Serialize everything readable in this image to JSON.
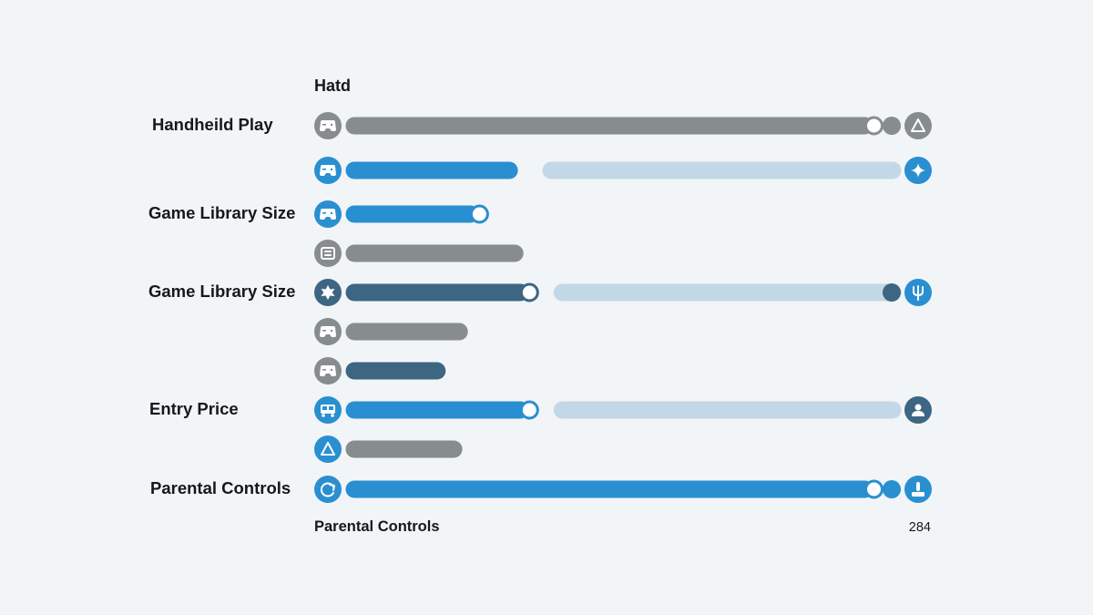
{
  "chart_data": {
    "type": "bar",
    "title": "Hatd",
    "footer_label": "Parental Controls",
    "footer_value": "284",
    "xlim": [
      0,
      100
    ],
    "colors": {
      "blue": "#2a8fd0",
      "gray": "#878c8f",
      "navy": "#3d6683",
      "track": "#c3d8e6"
    },
    "rows": [
      {
        "label": "Handheild Play",
        "icon": "controller-icon",
        "icon_color": "gray",
        "value": 95,
        "bar_color": "gray",
        "marker": true,
        "track": false,
        "dot_color": "gray",
        "end_icon": "triangle-icon",
        "end_icon_color": "gray"
      },
      {
        "label": "",
        "icon": "controller-icon",
        "icon_color": "blue",
        "value": 31,
        "bar_color": "blue",
        "marker": false,
        "track": true,
        "dot_color": null,
        "end_icon": "sparkle-icon",
        "end_icon_color": "blue"
      },
      {
        "label": "Game Library Size",
        "icon": "controller-icon",
        "icon_color": "blue",
        "value": 24,
        "bar_color": "blue",
        "marker": true,
        "track": false,
        "dot_color": null,
        "end_icon": null,
        "end_icon_color": null
      },
      {
        "label": "",
        "icon": "frame-icon",
        "icon_color": "gray",
        "value": 32,
        "bar_color": "gray",
        "marker": false,
        "track": false,
        "dot_color": null,
        "end_icon": null,
        "end_icon_color": null
      },
      {
        "label": "Game Library Size",
        "icon": "star-icon",
        "icon_color": "navy",
        "value": 33,
        "bar_color": "navy",
        "marker": true,
        "track": true,
        "dot_color": "navy",
        "end_icon": "trident-icon",
        "end_icon_color": "blue"
      },
      {
        "label": "",
        "icon": "controller-icon",
        "icon_color": "gray",
        "value": 22,
        "bar_color": "gray",
        "marker": false,
        "track": false,
        "dot_color": null,
        "end_icon": null,
        "end_icon_color": null
      },
      {
        "label": "",
        "icon": "controller-icon",
        "icon_color": "gray",
        "value": 18,
        "bar_color": "navy",
        "marker": false,
        "track": false,
        "dot_color": null,
        "end_icon": null,
        "end_icon_color": null
      },
      {
        "label": "Entry Price",
        "icon": "bus-icon",
        "icon_color": "blue",
        "value": 33,
        "bar_color": "blue",
        "marker": true,
        "track": true,
        "dot_color": null,
        "end_icon": "person-icon",
        "end_icon_color": "navy"
      },
      {
        "label": "",
        "icon": "triangle-icon",
        "icon_color": "blue",
        "value": 21,
        "bar_color": "gray",
        "marker": false,
        "track": false,
        "dot_color": null,
        "end_icon": null,
        "end_icon_color": null
      },
      {
        "label": "Parental Controls",
        "icon": "refresh-icon",
        "icon_color": "blue",
        "value": 95,
        "bar_color": "blue",
        "marker": true,
        "track": false,
        "dot_color": "blue",
        "end_icon": "joystick-icon",
        "end_icon_color": "blue"
      }
    ]
  }
}
